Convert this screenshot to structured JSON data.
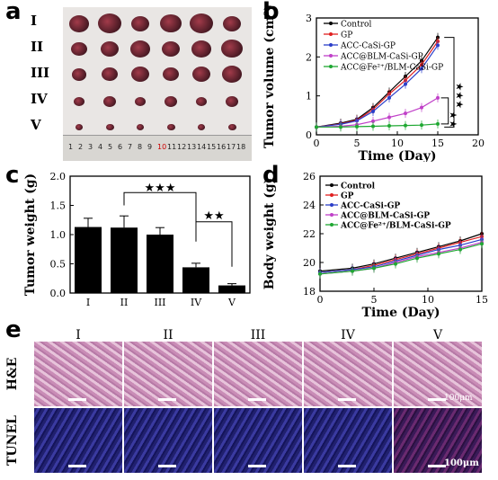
{
  "panels": {
    "a": "a",
    "b": "b",
    "c": "c",
    "d": "d",
    "e": "e"
  },
  "photo": {
    "row_labels": [
      "I",
      "II",
      "III",
      "IV",
      "V"
    ],
    "ruler_numbers": [
      "1",
      "2",
      "3",
      "4",
      "5",
      "6",
      "7",
      "8",
      "9",
      "10",
      "11",
      "12",
      "13",
      "14",
      "15",
      "16",
      "17",
      "18"
    ]
  },
  "chart_data": [
    {
      "id": "b",
      "type": "line",
      "xlabel": "Time (Day)",
      "ylabel": "Tumor volume (cm³)",
      "xlim": [
        0,
        20
      ],
      "ylim": [
        0,
        3
      ],
      "xticks": [
        0,
        5,
        10,
        15,
        20
      ],
      "yticks": [
        0,
        1,
        2,
        3
      ],
      "x": [
        0,
        3,
        5,
        7,
        9,
        11,
        13,
        15
      ],
      "series": [
        {
          "name": "Control",
          "color": "#000000",
          "values": [
            0.2,
            0.3,
            0.4,
            0.7,
            1.1,
            1.5,
            1.9,
            2.5
          ]
        },
        {
          "name": "GP",
          "color": "#e02020",
          "values": [
            0.2,
            0.28,
            0.38,
            0.65,
            1.05,
            1.4,
            1.8,
            2.4
          ]
        },
        {
          "name": "ACC-CaSi-GP",
          "color": "#2b3ec9",
          "values": [
            0.2,
            0.27,
            0.36,
            0.6,
            0.95,
            1.3,
            1.7,
            2.3
          ]
        },
        {
          "name": "ACC@BLM-CaSi-GP",
          "color": "#c040c8",
          "values": [
            0.2,
            0.22,
            0.26,
            0.35,
            0.45,
            0.55,
            0.7,
            0.95
          ]
        },
        {
          "name": "ACC@Fe²⁺/BLM-CaSi-GP",
          "color": "#1fa832",
          "values": [
            0.2,
            0.2,
            0.21,
            0.22,
            0.23,
            0.24,
            0.25,
            0.28
          ]
        }
      ],
      "annotations": [
        "★★★",
        "★★"
      ]
    },
    {
      "id": "c",
      "type": "bar",
      "ylabel": "Tumor weight (g)",
      "categories": [
        "I",
        "II",
        "III",
        "IV",
        "V"
      ],
      "values": [
        1.13,
        1.12,
        1.0,
        0.44,
        0.13
      ],
      "errors": [
        0.15,
        0.2,
        0.12,
        0.07,
        0.03
      ],
      "ylim": [
        0,
        2.0
      ],
      "yticks": [
        "0.0",
        "0.5",
        "1.0",
        "1.5",
        "2.0"
      ],
      "annotations": [
        "★★★",
        "★★"
      ]
    },
    {
      "id": "d",
      "type": "line",
      "xlabel": "Time (Day)",
      "ylabel": "Body weight (g)",
      "xlim": [
        0,
        15
      ],
      "ylim": [
        18,
        26
      ],
      "xticks": [
        0,
        5,
        10,
        15
      ],
      "yticks": [
        18,
        20,
        22,
        24,
        26
      ],
      "x": [
        0,
        3,
        5,
        7,
        9,
        11,
        13,
        15
      ],
      "series": [
        {
          "name": "Control",
          "color": "#000000",
          "values": [
            19.4,
            19.6,
            19.9,
            20.3,
            20.7,
            21.1,
            21.5,
            22.0
          ]
        },
        {
          "name": "GP",
          "color": "#e02020",
          "values": [
            19.3,
            19.5,
            19.8,
            20.2,
            20.6,
            21.0,
            21.4,
            21.8
          ]
        },
        {
          "name": "ACC-CaSi-GP",
          "color": "#2b3ec9",
          "values": [
            19.3,
            19.5,
            19.7,
            20.1,
            20.5,
            20.9,
            21.2,
            21.6
          ]
        },
        {
          "name": "ACC@BLM-CaSi-GP",
          "color": "#c040c8",
          "values": [
            19.2,
            19.4,
            19.6,
            20.0,
            20.4,
            20.7,
            21.0,
            21.4
          ]
        },
        {
          "name": "ACC@Fe²⁺/BLM-CaSi-GP",
          "color": "#1fa832",
          "values": [
            19.2,
            19.4,
            19.6,
            19.9,
            20.3,
            20.6,
            20.9,
            21.3
          ]
        }
      ]
    }
  ],
  "histology": {
    "col_labels": [
      "I",
      "II",
      "III",
      "IV",
      "V"
    ],
    "row_labels": [
      "H&E",
      "TUNEL"
    ],
    "scale_label": "100μm"
  }
}
